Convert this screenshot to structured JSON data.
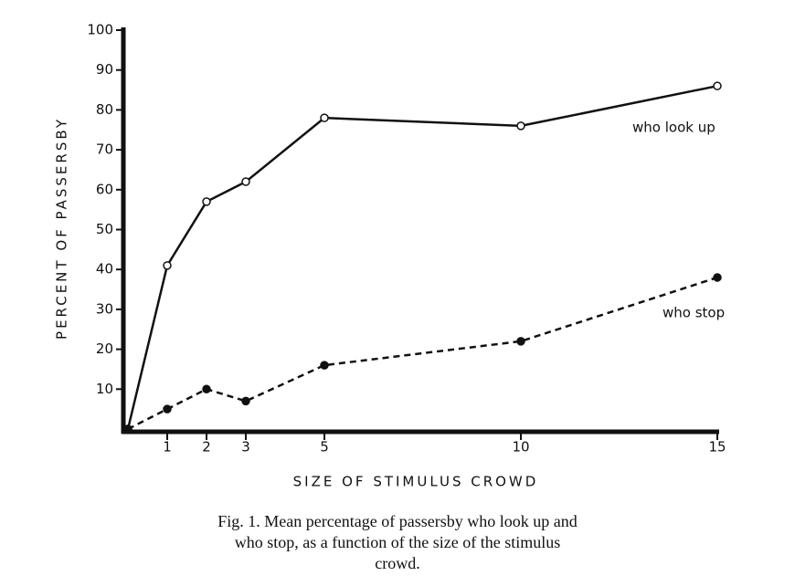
{
  "chart_data": {
    "type": "line",
    "x": [
      0,
      1,
      2,
      3,
      5,
      10,
      15
    ],
    "series": [
      {
        "name": "who look up",
        "color": "#111111",
        "line_style": "solid",
        "marker": "open",
        "values": [
          0,
          41,
          57,
          62,
          78,
          76,
          86
        ]
      },
      {
        "name": "who stop",
        "color": "#111111",
        "line_style": "dashed",
        "marker": "filled",
        "values": [
          0,
          5,
          10,
          7,
          16,
          22,
          38
        ]
      }
    ],
    "xlim": [
      0,
      15
    ],
    "xticks": [
      1,
      2,
      3,
      5,
      10,
      15
    ],
    "ylim": [
      0,
      100
    ],
    "yticks": [
      10,
      20,
      30,
      40,
      50,
      60,
      70,
      80,
      90,
      100
    ],
    "xlabel": "SIZE OF STIMULUS CROWD",
    "ylabel": "PERCENT OF PASSERSBY",
    "caption": "Fig. 1. Mean percentage of passersby who look up and who stop, as a function of the size of the stimulus crowd.",
    "grid": false
  }
}
